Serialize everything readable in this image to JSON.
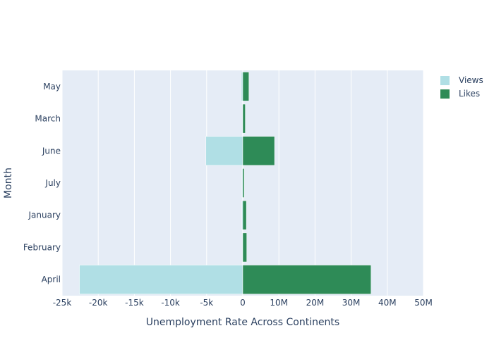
{
  "chart_data": {
    "type": "bar",
    "orientation": "horizontal",
    "categories": [
      "April",
      "February",
      "January",
      "July",
      "June",
      "March",
      "May"
    ],
    "series": [
      {
        "name": "Views",
        "color": "#b0dfe5",
        "values": [
          -22600,
          -80,
          -120,
          -100,
          -5100,
          -60,
          -200
        ]
      },
      {
        "name": "Likes",
        "color": "#2e8b57",
        "values": [
          35500000,
          1100000,
          1000000,
          400000,
          8800000,
          700000,
          1700000
        ]
      }
    ],
    "xlabel": "Unemployment Rate Across Continents",
    "ylabel": "Month",
    "negative_axis": {
      "range": [
        -25000,
        0
      ],
      "ticks": [
        "-25k",
        "-20k",
        "-15k",
        "-10k",
        "-5k",
        "0"
      ]
    },
    "positive_axis": {
      "range": [
        0,
        50000000
      ],
      "ticks": [
        "10M",
        "20M",
        "30M",
        "40M",
        "50M"
      ]
    },
    "legend_position": "top-right",
    "grid": true
  }
}
